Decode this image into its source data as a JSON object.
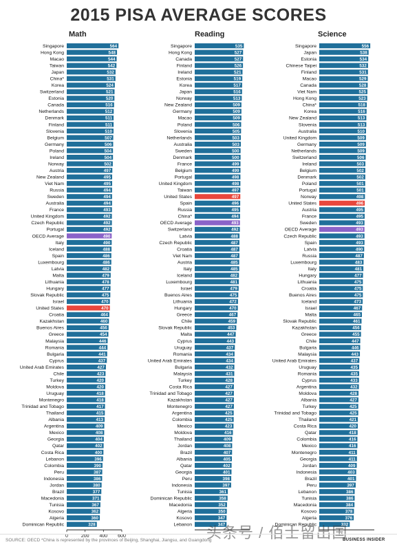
{
  "title": "2015 PISA AVERAGE SCORES",
  "source": "SOURCE: OECD *China is represented by the provinces of Beijing, Shanghai, Jiangsu, and Guangdong",
  "brand": "BUSINESS INSIDER",
  "watermark": "头条号 / 佰士留出国",
  "colors": {
    "bar": "#1f6f9a",
    "us": "#e8473c",
    "oecd": "#8a63c8"
  },
  "chart_data": [
    {
      "type": "bar",
      "title": "Math",
      "xlim": [
        0,
        600
      ],
      "xticks": [
        "0",
        "200",
        "400",
        "600"
      ],
      "categories": [
        "Singapore",
        "Hong Kong",
        "Macao",
        "Taiwan",
        "Japan",
        "China*",
        "Korea",
        "Switzerland",
        "Estonia",
        "Canada",
        "Netherlands",
        "Denmark",
        "Finland",
        "Slovenia",
        "Belgium",
        "Germany",
        "Poland",
        "Ireland",
        "Norway",
        "Austria",
        "New Zealand",
        "Viet Nam",
        "Russia",
        "Sweden",
        "Australia",
        "France",
        "United Kingdom",
        "Czech Republic",
        "Portugal",
        "OECD Average",
        "Italy",
        "Iceland",
        "Spain",
        "Luxembourg",
        "Latvia",
        "Malta",
        "Lithuania",
        "Hungary",
        "Slovak Republic",
        "Israel",
        "United States",
        "Croatia",
        "Kazakhstan",
        "Buenos Aires",
        "Greece",
        "Malaysia",
        "Romania",
        "Bulgaria",
        "Cyprus",
        "United Arab Emirates",
        "Chile",
        "Turkey",
        "Moldova",
        "Uruguay",
        "Montenegro",
        "Trinidad and Tobago",
        "Thailand",
        "Albania",
        "Argentina",
        "Mexico",
        "Georgia",
        "Qatar",
        "Costa Rica",
        "Lebanon",
        "Colombia",
        "Peru",
        "Indonesia",
        "Jordan",
        "Brazil",
        "Macedonia",
        "Tunisia",
        "Kosovo",
        "Algeria",
        "Dominican Republic"
      ],
      "values": [
        564,
        548,
        544,
        542,
        532,
        531,
        524,
        521,
        520,
        516,
        512,
        511,
        511,
        510,
        507,
        506,
        504,
        504,
        502,
        497,
        495,
        495,
        494,
        494,
        494,
        493,
        492,
        492,
        492,
        490,
        490,
        488,
        486,
        486,
        482,
        479,
        478,
        477,
        475,
        470,
        470,
        464,
        460,
        456,
        454,
        446,
        444,
        441,
        437,
        427,
        423,
        420,
        420,
        418,
        418,
        417,
        415,
        413,
        409,
        408,
        404,
        402,
        400,
        396,
        390,
        387,
        386,
        380,
        377,
        371,
        367,
        362,
        360,
        328
      ]
    },
    {
      "type": "bar",
      "title": "Reading",
      "xlim": [
        0,
        600
      ],
      "xticks": [],
      "categories": [
        "Singapore",
        "Hong Kong",
        "Canada",
        "Finland",
        "Ireland",
        "Estonia",
        "Korea",
        "Japan",
        "Norway",
        "New Zealand",
        "Germany",
        "Macao",
        "Poland",
        "Slovenia",
        "Netherlands",
        "Australia",
        "Sweden",
        "Denmark",
        "France",
        "Belgium",
        "Portugal",
        "United Kingdom",
        "Taiwan",
        "United States",
        "Spain",
        "Russia",
        "China*",
        "OECD Average",
        "Switzerland",
        "Latvia",
        "Czech Republic",
        "Croatia",
        "Viet Nam",
        "Austria",
        "Italy",
        "Iceland",
        "Luxembourg",
        "Israel",
        "Buenos Aires",
        "Lithuania",
        "Hungary",
        "Greece",
        "Chile",
        "Slovak Republic",
        "Malta",
        "Cyprus",
        "Uruguay",
        "Romania",
        "United Arab Emirates",
        "Bulgaria",
        "Malaysia",
        "Turkey",
        "Costa Rica",
        "Trinidad and Tobago",
        "Kazakhstan",
        "Montenegro",
        "Argentina",
        "Colombia",
        "Mexico",
        "Moldova",
        "Thailand",
        "Jordan",
        "Brazil",
        "Albania",
        "Qatar",
        "Georgia",
        "Peru",
        "Indonesia",
        "Tunisia",
        "Dominican Republic",
        "Macedonia",
        "Algeria",
        "Kosovo",
        "Lebanon"
      ],
      "values": [
        535,
        527,
        527,
        526,
        521,
        519,
        517,
        516,
        513,
        509,
        509,
        509,
        506,
        505,
        503,
        503,
        500,
        500,
        499,
        499,
        498,
        498,
        497,
        497,
        496,
        495,
        494,
        493,
        492,
        488,
        487,
        487,
        487,
        485,
        485,
        482,
        481,
        479,
        475,
        472,
        470,
        467,
        459,
        453,
        447,
        443,
        437,
        434,
        434,
        432,
        431,
        428,
        427,
        427,
        427,
        427,
        425,
        425,
        423,
        416,
        409,
        408,
        407,
        405,
        402,
        401,
        398,
        397,
        361,
        358,
        352,
        350,
        347,
        347
      ]
    },
    {
      "type": "bar",
      "title": "Science",
      "xlim": [
        0,
        600
      ],
      "xticks": [],
      "categories": [
        "Singapore",
        "Japan",
        "Estonia",
        "Chinese Taipei",
        "Finland",
        "Macao",
        "Canada",
        "Viet Nam",
        "Hong Kong",
        "China*",
        "Korea",
        "New Zealand",
        "Slovenia",
        "Australia",
        "United Kingdom",
        "Germany",
        "Netherlands",
        "Switzerland",
        "Ireland",
        "Belgium",
        "Denmark",
        "Poland",
        "Portugal",
        "Norway",
        "United States",
        "Austria",
        "France",
        "Sweden",
        "OECD Average",
        "Czech Republic",
        "Spain",
        "Latvia",
        "Russia",
        "Luxembourg",
        "Italy",
        "Hungary",
        "Lithuania",
        "Croatia",
        "Buenos Aires",
        "Iceland",
        "Israel",
        "Malta",
        "Slovak Republic",
        "Kazakhstan",
        "Greece",
        "Chile",
        "Bulgaria",
        "Malaysia",
        "United Arab Emirates",
        "Uruguay",
        "Romania",
        "Cyprus",
        "Argentina",
        "Moldova",
        "Albania",
        "Turkey",
        "Trinidad and Tobago",
        "Thailand",
        "Costa Rica",
        "Qatar",
        "Colombia",
        "Mexico",
        "Montenegro",
        "Georgia",
        "Jordan",
        "Indonesia",
        "Brazil",
        "Peru",
        "Lebanon",
        "Tunisia",
        "Macedonia",
        "Kosovo",
        "Algeria",
        "Dominican Republic"
      ],
      "values": [
        556,
        538,
        534,
        532,
        531,
        529,
        528,
        525,
        523,
        518,
        516,
        513,
        513,
        510,
        509,
        509,
        509,
        506,
        503,
        502,
        502,
        501,
        501,
        498,
        496,
        495,
        495,
        493,
        493,
        493,
        493,
        490,
        487,
        483,
        481,
        477,
        475,
        475,
        475,
        473,
        467,
        465,
        461,
        456,
        455,
        447,
        446,
        443,
        437,
        435,
        435,
        433,
        432,
        428,
        427,
        425,
        425,
        421,
        420,
        418,
        416,
        416,
        411,
        411,
        409,
        403,
        401,
        397,
        386,
        386,
        384,
        378,
        376,
        332
      ]
    }
  ]
}
